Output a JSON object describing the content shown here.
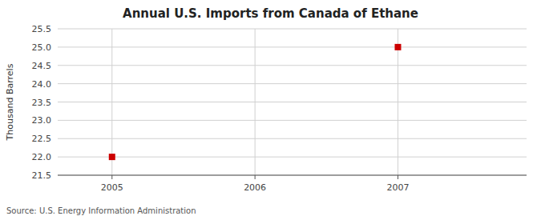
{
  "chart_data": {
    "type": "scatter",
    "title": "Annual U.S. Imports from Canada of Ethane",
    "ylabel": "Thousand Barrels",
    "source": "Source: U.S. Energy Information Administration",
    "x": [
      2005,
      2007
    ],
    "values": [
      22.0,
      25.0
    ],
    "color": "#cc0000",
    "marker": "square",
    "xlim": [
      2004.62,
      2007.9
    ],
    "ylim": [
      21.5,
      25.5
    ],
    "xticks": [
      2005,
      2006,
      2007
    ],
    "yticks": [
      21.5,
      {
        "value": 22.0,
        "label": "22.0"
      },
      22.5,
      {
        "value": 23.0,
        "label": "23.0"
      },
      23.5,
      {
        "value": 24.0,
        "label": "24.0"
      },
      24.5,
      {
        "value": 25.0,
        "label": "25.0"
      },
      25.5
    ],
    "grid": true
  }
}
